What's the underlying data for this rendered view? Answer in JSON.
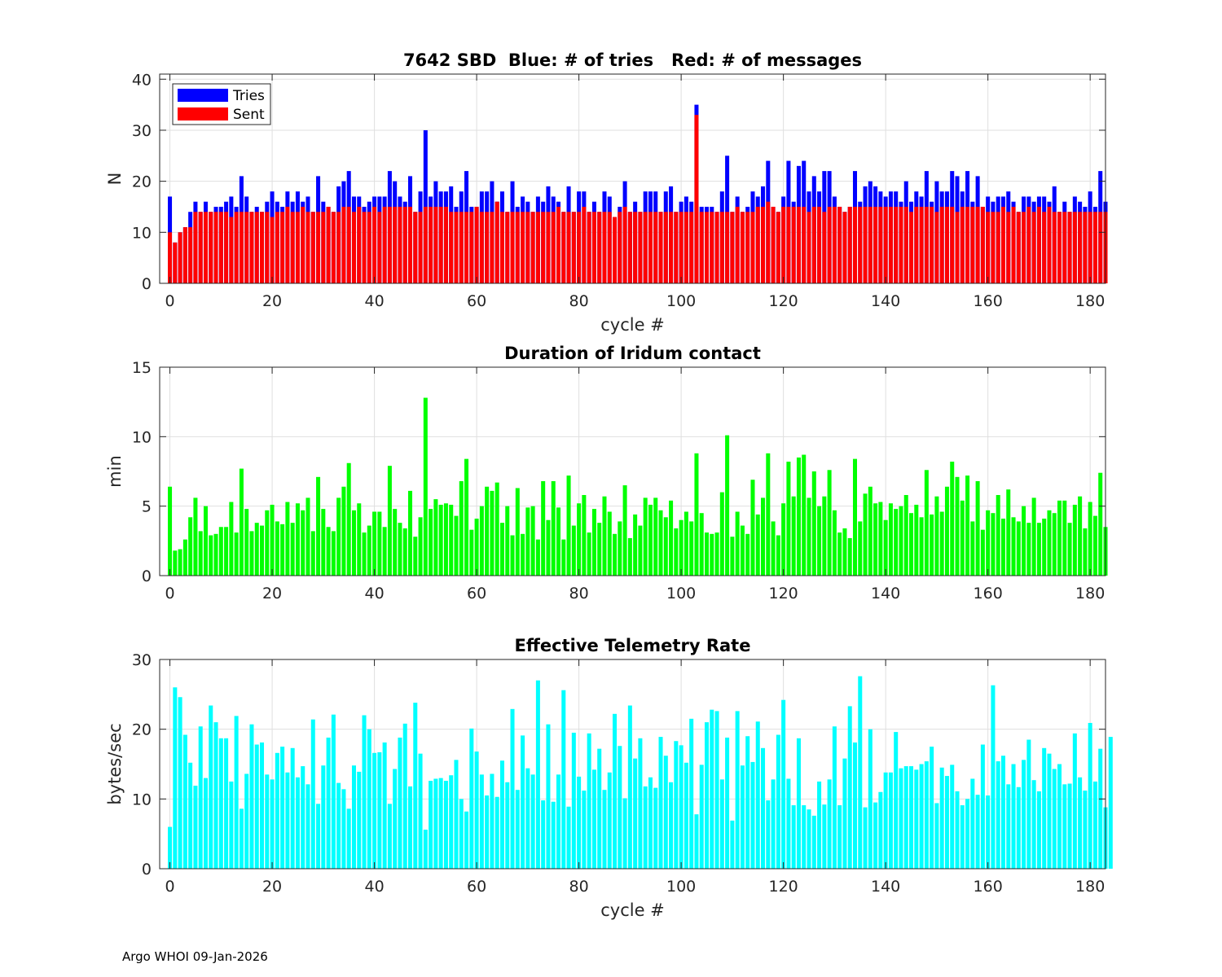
{
  "footer": "Argo WHOI 09-Jan-2026",
  "chart_data": [
    {
      "type": "bar",
      "title": "7642 SBD  Blue: # of tries   Red: # of messages",
      "xlabel": "cycle #",
      "ylabel": "N",
      "xlim": [
        -2,
        183
      ],
      "ylim": [
        0,
        41
      ],
      "xticks": [
        0,
        20,
        40,
        60,
        80,
        100,
        120,
        140,
        160,
        180
      ],
      "yticks": [
        0,
        10,
        20,
        30,
        40
      ],
      "grid": true,
      "legend": {
        "position": "top-left",
        "entries": [
          "Tries",
          "Sent"
        ]
      },
      "x_start": 0,
      "series": [
        {
          "name": "Tries",
          "color": "#0000ff",
          "values": [
            17,
            8,
            10,
            11,
            14,
            16,
            14,
            16,
            14,
            15,
            15,
            16,
            17,
            15,
            21,
            17,
            14,
            15,
            14,
            16,
            18,
            16,
            15,
            18,
            16,
            18,
            16,
            17,
            14,
            21,
            16,
            15,
            14,
            19,
            20,
            22,
            17,
            17,
            15,
            16,
            17,
            17,
            17,
            22,
            20,
            17,
            16,
            21,
            14,
            18,
            30,
            17,
            20,
            18,
            18,
            19,
            15,
            18,
            22,
            15,
            15,
            18,
            18,
            20,
            16,
            18,
            14,
            20,
            15,
            17,
            16,
            14,
            17,
            16,
            19,
            17,
            16,
            14,
            19,
            14,
            18,
            18,
            14,
            16,
            14,
            18,
            17,
            13,
            15,
            20,
            14,
            16,
            14,
            18,
            18,
            18,
            14,
            18,
            19,
            14,
            16,
            17,
            16,
            35,
            15,
            15,
            15,
            14,
            18,
            25,
            14,
            17,
            14,
            15,
            18,
            17,
            19,
            24,
            15,
            14,
            17,
            24,
            16,
            23,
            24,
            18,
            21,
            18,
            22,
            22,
            17,
            15,
            14,
            15,
            22,
            16,
            19,
            20,
            19,
            18,
            17,
            18,
            18,
            16,
            20,
            16,
            18,
            17,
            22,
            16,
            20,
            18,
            18,
            22,
            21,
            18,
            22,
            16,
            21,
            15,
            17,
            16,
            17,
            17,
            18,
            16,
            14,
            17,
            17,
            16,
            17,
            17,
            16,
            19,
            14,
            16,
            14,
            17,
            16,
            15,
            18,
            15,
            22,
            16
          ]
        },
        {
          "name": "Sent",
          "color": "#ff0000",
          "values": [
            10,
            8,
            10,
            11,
            11,
            14,
            14,
            14,
            14,
            14,
            14,
            14,
            13,
            14,
            14,
            14,
            14,
            14,
            14,
            14,
            13,
            14,
            14,
            15,
            14,
            14,
            15,
            14,
            14,
            14,
            14,
            15,
            14,
            14,
            15,
            15,
            14,
            15,
            14,
            14,
            15,
            14,
            15,
            15,
            15,
            15,
            15,
            15,
            14,
            14,
            15,
            15,
            15,
            15,
            15,
            14,
            14,
            14,
            14,
            14,
            15,
            14,
            14,
            14,
            16,
            14,
            14,
            14,
            14,
            14,
            14,
            14,
            14,
            14,
            14,
            14,
            15,
            14,
            14,
            14,
            14,
            15,
            14,
            14,
            14,
            14,
            14,
            13,
            14,
            15,
            14,
            14,
            14,
            14,
            14,
            14,
            14,
            14,
            14,
            14,
            14,
            14,
            14,
            33,
            14,
            14,
            14,
            14,
            14,
            14,
            14,
            15,
            14,
            14,
            14,
            15,
            15,
            16,
            15,
            14,
            15,
            15,
            15,
            15,
            15,
            14,
            15,
            15,
            14,
            15,
            15,
            15,
            14,
            15,
            15,
            15,
            15,
            15,
            15,
            15,
            15,
            15,
            15,
            15,
            15,
            14,
            15,
            15,
            15,
            15,
            14,
            15,
            15,
            15,
            14,
            15,
            15,
            15,
            15,
            15,
            14,
            14,
            14,
            15,
            14,
            15,
            14,
            14,
            15,
            14,
            15,
            14,
            15,
            14,
            14,
            14,
            14,
            14,
            14,
            14,
            14,
            14,
            14,
            14
          ]
        }
      ]
    },
    {
      "type": "bar",
      "title": "Duration of Iridum contact",
      "xlabel": "",
      "ylabel": "min",
      "xlim": [
        -2,
        183
      ],
      "ylim": [
        0,
        15
      ],
      "xticks": [
        0,
        20,
        40,
        60,
        80,
        100,
        120,
        140,
        160,
        180
      ],
      "yticks": [
        0,
        5,
        10,
        15
      ],
      "grid": true,
      "x_start": 0,
      "series": [
        {
          "name": "Duration",
          "color": "#00ff00",
          "values": [
            6.4,
            1.8,
            1.9,
            2.6,
            4.2,
            5.6,
            3.2,
            5.0,
            2.9,
            3.0,
            3.5,
            3.5,
            5.3,
            3.1,
            7.7,
            4.8,
            3.2,
            3.8,
            3.6,
            4.7,
            5.1,
            3.9,
            3.7,
            5.3,
            3.8,
            5.2,
            4.7,
            5.6,
            3.2,
            7.1,
            4.8,
            3.5,
            3.2,
            5.6,
            6.4,
            8.1,
            4.7,
            5.2,
            3.1,
            3.6,
            4.6,
            4.6,
            3.5,
            7.9,
            4.8,
            3.8,
            3.4,
            6.1,
            2.8,
            4.2,
            12.8,
            4.8,
            5.5,
            5.1,
            5.2,
            5.1,
            4.3,
            6.8,
            8.4,
            3.3,
            4.1,
            5.0,
            6.4,
            6.1,
            6.7,
            3.8,
            5.0,
            2.9,
            6.3,
            3.0,
            4.9,
            5.0,
            2.6,
            6.8,
            4.0,
            6.8,
            4.9,
            2.6,
            7.2,
            3.6,
            5.2,
            5.8,
            3.1,
            4.8,
            3.8,
            5.7,
            4.6,
            3.0,
            3.9,
            6.5,
            2.7,
            4.4,
            3.6,
            5.6,
            5.1,
            5.6,
            4.7,
            4.2,
            5.4,
            3.4,
            4.0,
            4.6,
            3.9,
            8.8,
            4.5,
            3.1,
            3.0,
            3.1,
            6.0,
            10.1,
            2.8,
            4.6,
            3.6,
            3.0,
            6.9,
            4.4,
            5.6,
            8.8,
            3.9,
            2.9,
            5.2,
            8.2,
            5.7,
            8.5,
            8.7,
            5.6,
            7.5,
            5.0,
            5.7,
            7.6,
            4.7,
            3.1,
            3.4,
            2.7,
            8.4,
            3.9,
            5.9,
            6.4,
            5.2,
            5.3,
            4.0,
            5.2,
            4.8,
            5.0,
            5.8,
            4.5,
            5.1,
            4.2,
            7.6,
            4.4,
            5.7,
            4.6,
            6.4,
            8.2,
            7.1,
            5.4,
            7.2,
            3.9,
            6.8,
            3.3,
            4.7,
            4.5,
            5.8,
            4.1,
            6.2,
            4.2,
            3.9,
            5.0,
            3.8,
            5.6,
            3.8,
            4.1,
            4.7,
            4.5,
            5.4,
            5.4,
            3.8,
            5.1,
            5.7,
            3.4,
            5.3,
            4.3,
            7.4,
            3.5
          ]
        }
      ]
    },
    {
      "type": "bar",
      "title": "Effective Telemetry Rate",
      "xlabel": "cycle #",
      "ylabel": "bytes/sec",
      "xlim": [
        -2,
        183
      ],
      "ylim": [
        0,
        30
      ],
      "xticks": [
        0,
        20,
        40,
        60,
        80,
        100,
        120,
        140,
        160,
        180
      ],
      "yticks": [
        0,
        10,
        20,
        30
      ],
      "grid": true,
      "x_start": 0,
      "series": [
        {
          "name": "Rate",
          "color": "#00ffff",
          "values": [
            6.0,
            26.0,
            24.6,
            19.2,
            15.2,
            11.9,
            20.4,
            13.0,
            23.4,
            21.0,
            18.7,
            18.7,
            12.5,
            21.9,
            8.6,
            13.6,
            20.7,
            17.8,
            18.1,
            13.5,
            12.8,
            16.6,
            17.5,
            13.8,
            17.3,
            13.1,
            14.7,
            12.1,
            21.4,
            9.3,
            14.8,
            18.8,
            22.1,
            12.3,
            11.4,
            8.6,
            14.8,
            13.9,
            22.0,
            20.0,
            16.6,
            16.7,
            18.1,
            9.3,
            14.3,
            18.8,
            20.8,
            11.8,
            23.8,
            16.5,
            5.6,
            12.6,
            12.9,
            13.0,
            12.6,
            13.4,
            15.6,
            10.0,
            8.2,
            20.1,
            16.8,
            13.5,
            10.5,
            13.6,
            10.3,
            15.5,
            12.4,
            22.9,
            11.3,
            19.1,
            14.4,
            13.5,
            27.0,
            9.8,
            20.7,
            9.6,
            13.5,
            25.6,
            8.9,
            19.5,
            13.2,
            11.2,
            19.4,
            14.2,
            17.2,
            11.3,
            13.8,
            22.2,
            17.6,
            10.1,
            23.4,
            15.8,
            18.7,
            11.8,
            13.1,
            11.6,
            18.9,
            16.2,
            12.4,
            18.3,
            17.7,
            15.2,
            21.5,
            7.8,
            14.9,
            21.0,
            22.8,
            22.6,
            12.8,
            18.8,
            6.9,
            22.6,
            14.8,
            19.0,
            15.3,
            21.1,
            17.3,
            9.8,
            12.8,
            19.2,
            24.2,
            12.9,
            9.1,
            18.7,
            9.1,
            8.5,
            7.6,
            12.5,
            9.2,
            12.8,
            20.4,
            9.1,
            15.8,
            23.3,
            18.1,
            27.6,
            8.8,
            20.0,
            9.5,
            11.0,
            13.8,
            13.8,
            19.6,
            14.4,
            14.7,
            14.7,
            14.2,
            15.0,
            15.4,
            17.5,
            9.4,
            14.5,
            13.3,
            14.9,
            11.1,
            9.1,
            10.0,
            12.9,
            10.6,
            17.8,
            10.5,
            26.3,
            15.4,
            16.2,
            12.1,
            15.0,
            11.7,
            15.6,
            18.5,
            12.7,
            11.1,
            17.3,
            16.5,
            14.3,
            15.0,
            12.1,
            12.2,
            19.4,
            13.1,
            11.2,
            20.9,
            12.5,
            17.2,
            8.8,
            18.9
          ]
        }
      ]
    }
  ]
}
